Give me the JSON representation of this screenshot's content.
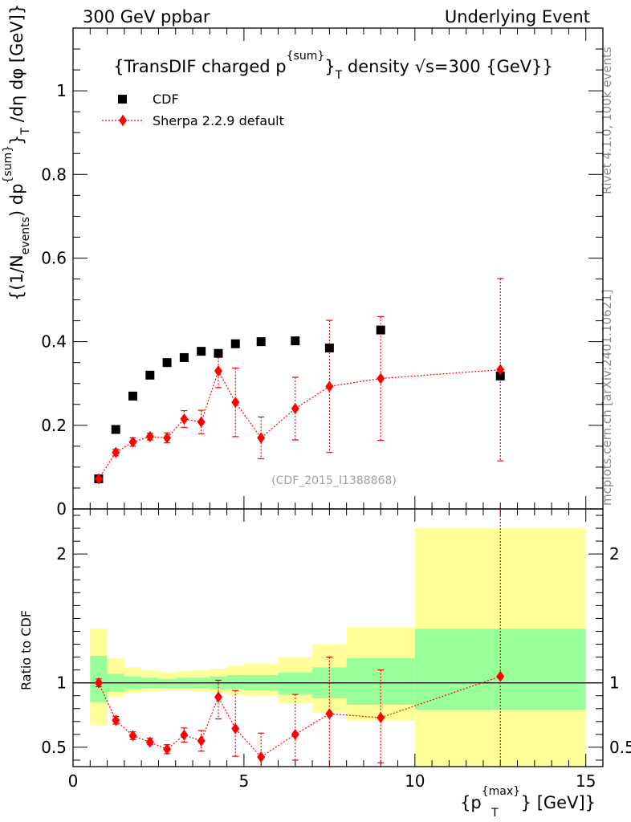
{
  "header": {
    "left": "300 GeV ppbar",
    "right": "Underlying Event"
  },
  "side_labels": {
    "rivet": "Rivet 4.1.0,  100k events",
    "mcplots": "mcplots.cern.ch [arXiv:2401.10621]"
  },
  "chart_data": [
    {
      "type": "scatter",
      "title": "{TransDIF charged p^{sum}_T density √s=300 {GeV}}",
      "title_parts": {
        "main": "{TransDIF charged p",
        "sup": "{sum}",
        "close": "}",
        "sub": "T",
        "rest": " density √s=300 {GeV}}"
      },
      "ylabel": "{(1/N_events) dp^{sum}}_T /dη  dφ [GeV]}",
      "ylabel_parts": {
        "a": "{(1/N",
        "a_sub": "events",
        "b": ") dp",
        "b_sup": "{sum}",
        "c": "}",
        "c_sub": "T",
        "d": " /dη  dφ [GeV]}"
      },
      "xlabel": "{p_T^{max}} [GeV]}",
      "xlabel_parts": {
        "a": "{p",
        "sup": "{max}",
        "sub": "T",
        "b": "} [GeV]}"
      },
      "xlim": [
        0,
        15.5
      ],
      "ylim": [
        0,
        1.15
      ],
      "yticks": [
        0,
        0.2,
        0.4,
        0.6,
        0.8,
        1
      ],
      "ytick_labels": [
        "0",
        "0.2",
        "0.4",
        "0.6",
        "0.8",
        "1"
      ],
      "watermark": "(CDF_2015_I1388868)",
      "legend_position": "top-left",
      "series": [
        {
          "name": "CDF",
          "marker": "square",
          "color": "#000000",
          "x": [
            0.75,
            1.25,
            1.75,
            2.25,
            2.75,
            3.25,
            3.75,
            4.25,
            4.75,
            5.5,
            6.5,
            7.5,
            9.0,
            12.5
          ],
          "y": [
            0.072,
            0.19,
            0.27,
            0.32,
            0.35,
            0.362,
            0.377,
            0.372,
            0.395,
            0.4,
            0.402,
            0.385,
            0.428,
            0.318
          ]
        },
        {
          "name": "Sherpa 2.2.9 default",
          "marker": "diamond",
          "color": "#ff0000",
          "x": [
            0.75,
            1.25,
            1.75,
            2.25,
            2.75,
            3.25,
            3.75,
            4.25,
            4.75,
            5.5,
            6.5,
            7.5,
            9.0,
            12.5
          ],
          "y": [
            0.072,
            0.135,
            0.16,
            0.173,
            0.17,
            0.215,
            0.208,
            0.33,
            0.255,
            0.17,
            0.24,
            0.293,
            0.312,
            0.333
          ],
          "yerr": [
            0.005,
            0.008,
            0.01,
            0.008,
            0.012,
            0.02,
            0.028,
            0.04,
            0.082,
            0.05,
            0.075,
            0.158,
            0.148,
            0.218
          ]
        }
      ]
    },
    {
      "type": "scatter",
      "ylabel": "Ratio to CDF",
      "xlim": [
        0,
        15.5
      ],
      "ylim": [
        0.35,
        2.35
      ],
      "yticks": [
        0.5,
        1,
        2
      ],
      "ytick_labels": [
        "0.5",
        "1",
        "2"
      ],
      "xticks": [
        0,
        5,
        10,
        15
      ],
      "xtick_labels": [
        "0",
        "5",
        "10",
        "15"
      ],
      "band_colors": {
        "stat": "#99ff99",
        "syst": "#ffff99"
      },
      "bands": [
        {
          "x0": 0.5,
          "x1": 1.0,
          "inner": [
            0.85,
            1.21
          ],
          "outer": [
            0.67,
            1.42
          ]
        },
        {
          "x0": 1.0,
          "x1": 1.5,
          "inner": [
            0.93,
            1.07
          ],
          "outer": [
            0.89,
            1.19
          ]
        },
        {
          "x0": 1.5,
          "x1": 2.0,
          "inner": [
            0.95,
            1.05
          ],
          "outer": [
            0.92,
            1.12
          ]
        },
        {
          "x0": 2.0,
          "x1": 2.5,
          "inner": [
            0.96,
            1.04
          ],
          "outer": [
            0.93,
            1.1
          ]
        },
        {
          "x0": 2.5,
          "x1": 3.0,
          "inner": [
            0.96,
            1.03
          ],
          "outer": [
            0.94,
            1.08
          ]
        },
        {
          "x0": 3.0,
          "x1": 3.5,
          "inner": [
            0.96,
            1.04
          ],
          "outer": [
            0.94,
            1.09
          ]
        },
        {
          "x0": 3.5,
          "x1": 4.0,
          "inner": [
            0.96,
            1.04
          ],
          "outer": [
            0.93,
            1.1
          ]
        },
        {
          "x0": 4.0,
          "x1": 4.5,
          "inner": [
            0.95,
            1.05
          ],
          "outer": [
            0.92,
            1.11
          ]
        },
        {
          "x0": 4.5,
          "x1": 5.0,
          "inner": [
            0.95,
            1.06
          ],
          "outer": [
            0.91,
            1.13
          ]
        },
        {
          "x0": 5.0,
          "x1": 6.0,
          "inner": [
            0.94,
            1.06
          ],
          "outer": [
            0.9,
            1.15
          ]
        },
        {
          "x0": 6.0,
          "x1": 7.0,
          "inner": [
            0.91,
            1.08
          ],
          "outer": [
            0.84,
            1.2
          ]
        },
        {
          "x0": 7.0,
          "x1": 8.0,
          "inner": [
            0.88,
            1.12
          ],
          "outer": [
            0.77,
            1.3
          ]
        },
        {
          "x0": 8.0,
          "x1": 10.0,
          "inner": [
            0.83,
            1.19
          ],
          "outer": [
            0.71,
            1.43
          ]
        },
        {
          "x0": 10.0,
          "x1": 15.0,
          "inner": [
            0.79,
            1.42
          ],
          "outer": [
            0.35,
            2.2
          ]
        }
      ],
      "series": [
        {
          "name": "Sherpa 2.2.9 default / CDF",
          "marker": "diamond",
          "color": "#ff0000",
          "x": [
            0.75,
            1.25,
            1.75,
            2.25,
            2.75,
            3.25,
            3.75,
            4.25,
            4.75,
            5.5,
            6.5,
            7.5,
            9.0,
            12.5
          ],
          "y": [
            1.0,
            0.71,
            0.59,
            0.54,
            0.485,
            0.595,
            0.55,
            0.89,
            0.645,
            0.425,
            0.6,
            0.76,
            0.73,
            1.05
          ],
          "ylo": [
            0.97,
            0.68,
            0.56,
            0.52,
            0.45,
            0.54,
            0.47,
            0.72,
            0.43,
            0.3,
            0.4,
            0.35,
            0.38,
            0.35
          ],
          "yhi": [
            1.03,
            0.74,
            0.62,
            0.57,
            0.52,
            0.65,
            0.63,
            1.02,
            0.94,
            0.61,
            0.91,
            1.2,
            1.1,
            2.35
          ]
        }
      ]
    }
  ]
}
